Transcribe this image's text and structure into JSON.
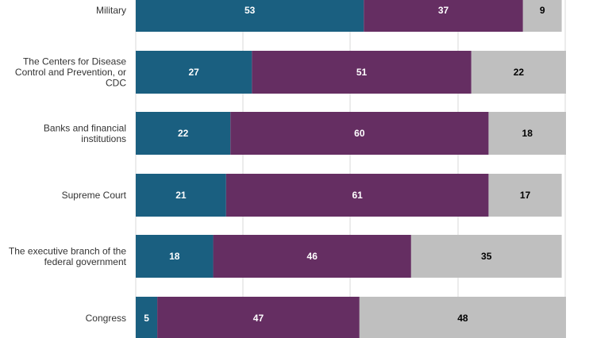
{
  "chart_data": {
    "type": "bar",
    "orientation": "horizontal",
    "stacked": true,
    "xlim": [
      0,
      100
    ],
    "grid": true,
    "categories": [
      [
        "Military"
      ],
      [
        "The Centers for Disease",
        "Control and Prevention, or",
        "CDC"
      ],
      [
        "Banks and financial",
        "institutions"
      ],
      [
        "Supreme Court"
      ],
      [
        "The executive branch of the",
        "federal government"
      ],
      [
        "Congress"
      ]
    ],
    "series": [
      {
        "values": [
          53,
          27,
          22,
          21,
          18,
          5
        ],
        "color": "#1a5f80",
        "label_color": "#ffffff"
      },
      {
        "values": [
          37,
          51,
          60,
          61,
          46,
          47
        ],
        "color": "#652e62",
        "label_color": "#ffffff"
      },
      {
        "values": [
          9,
          22,
          18,
          17,
          35,
          48
        ],
        "color": "#bfbfbf",
        "label_color": "#000000"
      }
    ]
  }
}
